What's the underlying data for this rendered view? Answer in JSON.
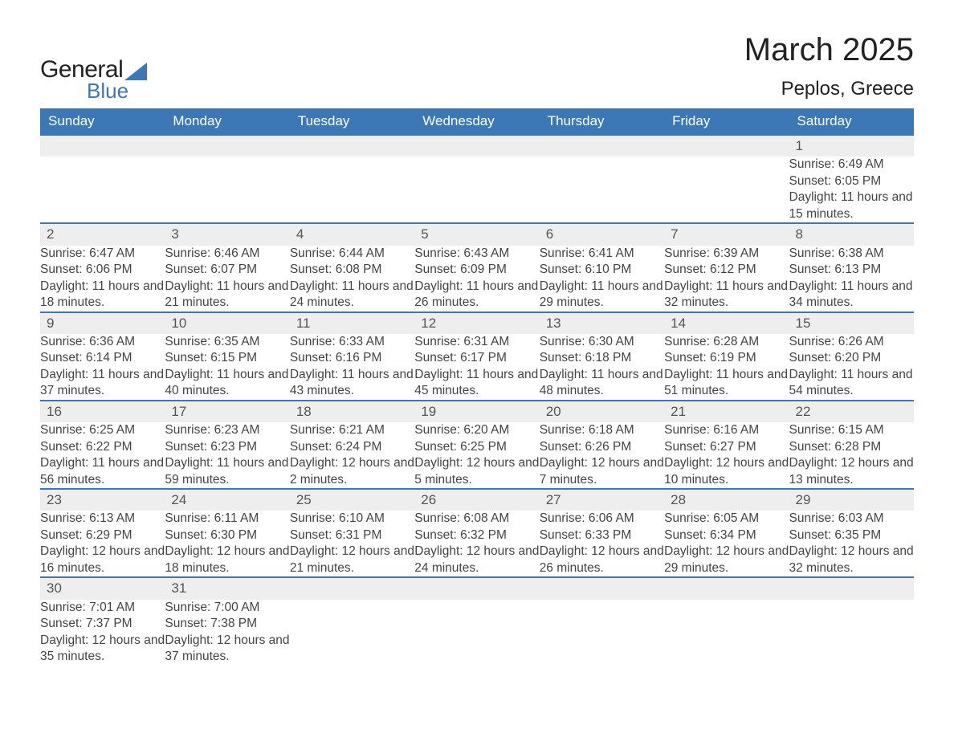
{
  "logo": {
    "line1": "General",
    "line2": "Blue"
  },
  "title": {
    "month": "March 2025",
    "location": "Peplos, Greece"
  },
  "colors": {
    "header_bg": "#3b78b5",
    "header_text": "#ffffff",
    "daynum_bg": "#eeeeee",
    "row_divider": "#3b78b5",
    "body_text": "#444444",
    "daynum_text": "#555555",
    "page_bg": "#ffffff"
  },
  "typography": {
    "title_fontsize_pt": 30,
    "location_fontsize_pt": 18,
    "header_fontsize_pt": 13,
    "body_fontsize_pt": 12
  },
  "weekdays": [
    "Sunday",
    "Monday",
    "Tuesday",
    "Wednesday",
    "Thursday",
    "Friday",
    "Saturday"
  ],
  "weeks": [
    [
      null,
      null,
      null,
      null,
      null,
      null,
      {
        "day": "1",
        "sunrise": "Sunrise: 6:49 AM",
        "sunset": "Sunset: 6:05 PM",
        "daylight": "Daylight: 11 hours and 15 minutes."
      }
    ],
    [
      {
        "day": "2",
        "sunrise": "Sunrise: 6:47 AM",
        "sunset": "Sunset: 6:06 PM",
        "daylight": "Daylight: 11 hours and 18 minutes."
      },
      {
        "day": "3",
        "sunrise": "Sunrise: 6:46 AM",
        "sunset": "Sunset: 6:07 PM",
        "daylight": "Daylight: 11 hours and 21 minutes."
      },
      {
        "day": "4",
        "sunrise": "Sunrise: 6:44 AM",
        "sunset": "Sunset: 6:08 PM",
        "daylight": "Daylight: 11 hours and 24 minutes."
      },
      {
        "day": "5",
        "sunrise": "Sunrise: 6:43 AM",
        "sunset": "Sunset: 6:09 PM",
        "daylight": "Daylight: 11 hours and 26 minutes."
      },
      {
        "day": "6",
        "sunrise": "Sunrise: 6:41 AM",
        "sunset": "Sunset: 6:10 PM",
        "daylight": "Daylight: 11 hours and 29 minutes."
      },
      {
        "day": "7",
        "sunrise": "Sunrise: 6:39 AM",
        "sunset": "Sunset: 6:12 PM",
        "daylight": "Daylight: 11 hours and 32 minutes."
      },
      {
        "day": "8",
        "sunrise": "Sunrise: 6:38 AM",
        "sunset": "Sunset: 6:13 PM",
        "daylight": "Daylight: 11 hours and 34 minutes."
      }
    ],
    [
      {
        "day": "9",
        "sunrise": "Sunrise: 6:36 AM",
        "sunset": "Sunset: 6:14 PM",
        "daylight": "Daylight: 11 hours and 37 minutes."
      },
      {
        "day": "10",
        "sunrise": "Sunrise: 6:35 AM",
        "sunset": "Sunset: 6:15 PM",
        "daylight": "Daylight: 11 hours and 40 minutes."
      },
      {
        "day": "11",
        "sunrise": "Sunrise: 6:33 AM",
        "sunset": "Sunset: 6:16 PM",
        "daylight": "Daylight: 11 hours and 43 minutes."
      },
      {
        "day": "12",
        "sunrise": "Sunrise: 6:31 AM",
        "sunset": "Sunset: 6:17 PM",
        "daylight": "Daylight: 11 hours and 45 minutes."
      },
      {
        "day": "13",
        "sunrise": "Sunrise: 6:30 AM",
        "sunset": "Sunset: 6:18 PM",
        "daylight": "Daylight: 11 hours and 48 minutes."
      },
      {
        "day": "14",
        "sunrise": "Sunrise: 6:28 AM",
        "sunset": "Sunset: 6:19 PM",
        "daylight": "Daylight: 11 hours and 51 minutes."
      },
      {
        "day": "15",
        "sunrise": "Sunrise: 6:26 AM",
        "sunset": "Sunset: 6:20 PM",
        "daylight": "Daylight: 11 hours and 54 minutes."
      }
    ],
    [
      {
        "day": "16",
        "sunrise": "Sunrise: 6:25 AM",
        "sunset": "Sunset: 6:22 PM",
        "daylight": "Daylight: 11 hours and 56 minutes."
      },
      {
        "day": "17",
        "sunrise": "Sunrise: 6:23 AM",
        "sunset": "Sunset: 6:23 PM",
        "daylight": "Daylight: 11 hours and 59 minutes."
      },
      {
        "day": "18",
        "sunrise": "Sunrise: 6:21 AM",
        "sunset": "Sunset: 6:24 PM",
        "daylight": "Daylight: 12 hours and 2 minutes."
      },
      {
        "day": "19",
        "sunrise": "Sunrise: 6:20 AM",
        "sunset": "Sunset: 6:25 PM",
        "daylight": "Daylight: 12 hours and 5 minutes."
      },
      {
        "day": "20",
        "sunrise": "Sunrise: 6:18 AM",
        "sunset": "Sunset: 6:26 PM",
        "daylight": "Daylight: 12 hours and 7 minutes."
      },
      {
        "day": "21",
        "sunrise": "Sunrise: 6:16 AM",
        "sunset": "Sunset: 6:27 PM",
        "daylight": "Daylight: 12 hours and 10 minutes."
      },
      {
        "day": "22",
        "sunrise": "Sunrise: 6:15 AM",
        "sunset": "Sunset: 6:28 PM",
        "daylight": "Daylight: 12 hours and 13 minutes."
      }
    ],
    [
      {
        "day": "23",
        "sunrise": "Sunrise: 6:13 AM",
        "sunset": "Sunset: 6:29 PM",
        "daylight": "Daylight: 12 hours and 16 minutes."
      },
      {
        "day": "24",
        "sunrise": "Sunrise: 6:11 AM",
        "sunset": "Sunset: 6:30 PM",
        "daylight": "Daylight: 12 hours and 18 minutes."
      },
      {
        "day": "25",
        "sunrise": "Sunrise: 6:10 AM",
        "sunset": "Sunset: 6:31 PM",
        "daylight": "Daylight: 12 hours and 21 minutes."
      },
      {
        "day": "26",
        "sunrise": "Sunrise: 6:08 AM",
        "sunset": "Sunset: 6:32 PM",
        "daylight": "Daylight: 12 hours and 24 minutes."
      },
      {
        "day": "27",
        "sunrise": "Sunrise: 6:06 AM",
        "sunset": "Sunset: 6:33 PM",
        "daylight": "Daylight: 12 hours and 26 minutes."
      },
      {
        "day": "28",
        "sunrise": "Sunrise: 6:05 AM",
        "sunset": "Sunset: 6:34 PM",
        "daylight": "Daylight: 12 hours and 29 minutes."
      },
      {
        "day": "29",
        "sunrise": "Sunrise: 6:03 AM",
        "sunset": "Sunset: 6:35 PM",
        "daylight": "Daylight: 12 hours and 32 minutes."
      }
    ],
    [
      {
        "day": "30",
        "sunrise": "Sunrise: 7:01 AM",
        "sunset": "Sunset: 7:37 PM",
        "daylight": "Daylight: 12 hours and 35 minutes."
      },
      {
        "day": "31",
        "sunrise": "Sunrise: 7:00 AM",
        "sunset": "Sunset: 7:38 PM",
        "daylight": "Daylight: 12 hours and 37 minutes."
      },
      null,
      null,
      null,
      null,
      null
    ]
  ]
}
